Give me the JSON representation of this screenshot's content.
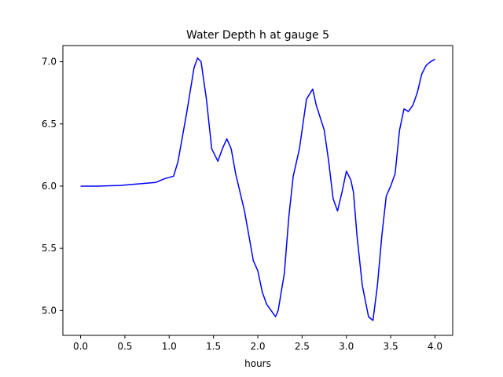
{
  "chart_data": {
    "type": "line",
    "title": "Water Depth h at gauge 5",
    "xlabel": "hours",
    "ylabel": "",
    "xlim": [
      -0.2,
      4.2
    ],
    "ylim": [
      4.8,
      7.13
    ],
    "grid": false,
    "legend": "none",
    "xticks": [
      0.0,
      0.5,
      1.0,
      1.5,
      2.0,
      2.5,
      3.0,
      3.5,
      4.0
    ],
    "xtick_labels": [
      "0.0",
      "0.5",
      "1.0",
      "1.5",
      "2.0",
      "2.5",
      "3.0",
      "3.5",
      "4.0"
    ],
    "yticks": [
      5.0,
      5.5,
      6.0,
      6.5,
      7.0
    ],
    "ytick_labels": [
      "5.0",
      "5.5",
      "6.0",
      "6.5",
      "7.0"
    ],
    "colors": {
      "line": "#0000ff",
      "axes": "#000000",
      "background": "#ffffff"
    },
    "series": [
      {
        "x": [
          0.0,
          0.2,
          0.45,
          0.6,
          0.85,
          0.95,
          1.05,
          1.1,
          1.2,
          1.28,
          1.32,
          1.36,
          1.42,
          1.48,
          1.55,
          1.6,
          1.65,
          1.7,
          1.75,
          1.85,
          1.95,
          2.0,
          2.05,
          2.1,
          2.15,
          2.2,
          2.23,
          2.3,
          2.35,
          2.4,
          2.47,
          2.55,
          2.62,
          2.66,
          2.75,
          2.8,
          2.85,
          2.9,
          2.95,
          3.0,
          3.05,
          3.08,
          3.12,
          3.18,
          3.25,
          3.3,
          3.35,
          3.4,
          3.45,
          3.5,
          3.55,
          3.6,
          3.65,
          3.7,
          3.75,
          3.8,
          3.85,
          3.9,
          3.95,
          4.0
        ],
        "y": [
          6.0,
          6.0,
          6.005,
          6.015,
          6.03,
          6.06,
          6.08,
          6.2,
          6.6,
          6.95,
          7.03,
          7.0,
          6.7,
          6.3,
          6.2,
          6.3,
          6.38,
          6.3,
          6.1,
          5.8,
          5.4,
          5.32,
          5.15,
          5.05,
          5.0,
          4.95,
          5.0,
          5.3,
          5.75,
          6.08,
          6.3,
          6.7,
          6.78,
          6.65,
          6.45,
          6.2,
          5.9,
          5.8,
          5.95,
          6.12,
          6.05,
          5.95,
          5.6,
          5.2,
          4.95,
          4.92,
          5.2,
          5.6,
          5.92,
          6.0,
          6.1,
          6.45,
          6.62,
          6.6,
          6.65,
          6.75,
          6.9,
          6.97,
          7.0,
          7.02
        ]
      }
    ]
  }
}
